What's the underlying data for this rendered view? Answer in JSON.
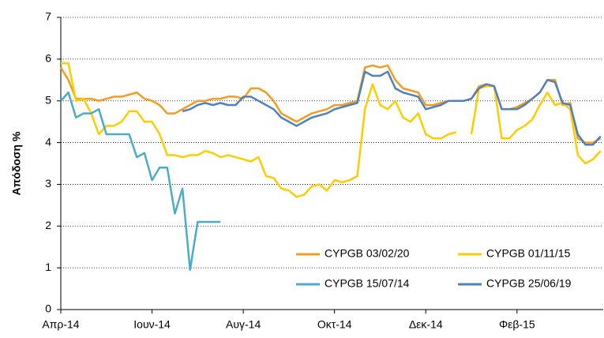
{
  "chart_data": {
    "type": "line",
    "y_label": "Απόδοση %",
    "categories": [
      "Απρ-14",
      null,
      null,
      null,
      null,
      null,
      null,
      null,
      null,
      null,
      null,
      null,
      "Ιουν-14",
      null,
      null,
      null,
      null,
      null,
      null,
      null,
      null,
      null,
      null,
      null,
      "Αυγ-14",
      null,
      null,
      null,
      null,
      null,
      null,
      null,
      null,
      null,
      null,
      null,
      "Οκτ-14",
      null,
      null,
      null,
      null,
      null,
      null,
      null,
      null,
      null,
      null,
      null,
      "Δεκ-14",
      null,
      null,
      null,
      null,
      null,
      null,
      null,
      null,
      null,
      null,
      null,
      "Φεβ-15",
      null,
      null,
      null,
      null,
      null,
      null,
      null,
      null,
      null,
      null,
      null
    ],
    "ylim": [
      0,
      7
    ],
    "yticks": [
      0,
      1,
      2,
      3,
      4,
      5,
      6,
      7
    ],
    "grid": true,
    "series": [
      {
        "name": "CYPGB 03/02/20",
        "color": "#f39c1f",
        "values": [
          5.8,
          5.5,
          5.05,
          5.05,
          5.05,
          5.0,
          5.05,
          5.1,
          5.1,
          5.15,
          5.2,
          5.05,
          5.0,
          4.9,
          4.7,
          4.7,
          4.8,
          4.9,
          5.0,
          5.0,
          5.05,
          5.05,
          5.1,
          5.1,
          5.05,
          5.3,
          5.3,
          5.2,
          5.0,
          4.7,
          4.6,
          4.5,
          4.6,
          4.7,
          4.75,
          4.8,
          4.9,
          4.9,
          4.95,
          5.0,
          5.8,
          5.85,
          5.8,
          5.85,
          5.5,
          5.3,
          5.25,
          5.2,
          4.9,
          4.9,
          4.95,
          5.0,
          5.0,
          5.0,
          5.05,
          5.35,
          5.4,
          5.35,
          4.8,
          4.8,
          4.85,
          4.95,
          5.05,
          5.2,
          5.5,
          5.5,
          4.9,
          4.95,
          4.1,
          4.0,
          4.0,
          4.1
        ]
      },
      {
        "name": "CYPGB 01/11/15",
        "color": "#ffcc00",
        "values": [
          5.9,
          5.9,
          5.0,
          5.05,
          4.7,
          4.2,
          4.4,
          4.4,
          4.5,
          4.75,
          4.75,
          4.5,
          4.5,
          4.2,
          3.7,
          3.7,
          3.65,
          3.7,
          3.7,
          3.8,
          3.75,
          3.65,
          3.7,
          3.65,
          3.6,
          3.55,
          3.65,
          3.2,
          3.15,
          2.9,
          2.85,
          2.7,
          2.75,
          2.95,
          3.0,
          2.85,
          3.1,
          3.05,
          3.1,
          3.2,
          4.8,
          5.4,
          4.9,
          4.8,
          5.0,
          4.6,
          4.5,
          4.7,
          4.2,
          4.1,
          4.1,
          4.2,
          4.25,
          null,
          4.2,
          5.3,
          5.35,
          5.35,
          4.1,
          4.1,
          4.3,
          4.4,
          4.55,
          4.9,
          5.2,
          4.9,
          4.95,
          4.8,
          3.7,
          3.5,
          3.6,
          3.8
        ]
      },
      {
        "name": "CYPGB 15/07/14",
        "color": "#4bacc6",
        "values": [
          5.0,
          5.2,
          4.6,
          4.7,
          4.7,
          4.8,
          4.2,
          4.2,
          4.2,
          4.2,
          3.65,
          3.75,
          3.1,
          3.4,
          3.4,
          2.3,
          2.9,
          0.95,
          2.1,
          2.1,
          2.1,
          2.1,
          null,
          null,
          null,
          null,
          null,
          null,
          null,
          null,
          null,
          null,
          null,
          null,
          null,
          null,
          null,
          null,
          null,
          null,
          null,
          null,
          null,
          null,
          null,
          null,
          null,
          null,
          null,
          null,
          null,
          null,
          null,
          null,
          null,
          null,
          null,
          null,
          null,
          null,
          null,
          null,
          null,
          null,
          null,
          null,
          null,
          null,
          null,
          null,
          null,
          null
        ]
      },
      {
        "name": "CYPGB 25/06/19",
        "color": "#4f81bd",
        "values": [
          null,
          null,
          null,
          null,
          null,
          null,
          null,
          null,
          null,
          null,
          null,
          null,
          null,
          null,
          null,
          null,
          4.75,
          4.8,
          4.9,
          4.95,
          4.9,
          4.95,
          4.9,
          4.9,
          5.1,
          5.1,
          5.0,
          4.9,
          4.8,
          4.6,
          4.5,
          4.4,
          4.5,
          4.6,
          4.65,
          4.7,
          4.8,
          4.85,
          4.9,
          4.95,
          5.7,
          5.6,
          5.6,
          5.7,
          5.3,
          5.2,
          5.15,
          5.1,
          4.8,
          4.85,
          4.9,
          5.0,
          5.0,
          5.0,
          5.05,
          5.3,
          5.4,
          5.35,
          4.8,
          4.8,
          4.8,
          4.9,
          5.05,
          5.2,
          5.5,
          5.45,
          4.95,
          4.9,
          4.2,
          3.95,
          3.95,
          4.15
        ]
      }
    ]
  }
}
